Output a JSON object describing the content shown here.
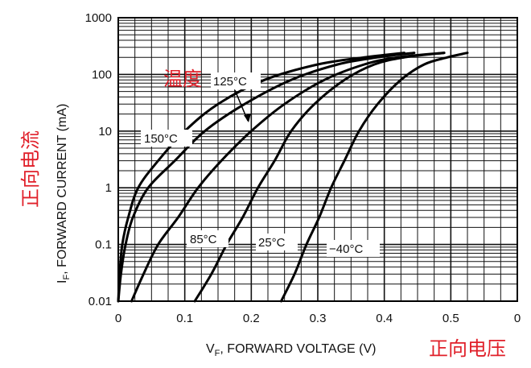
{
  "chart_data": {
    "type": "line",
    "xlabel_main": "V",
    "xlabel_sub": "F",
    "xlabel_rest": ", FORWARD VOLTAGE (V)",
    "ylabel_main": "I",
    "ylabel_sub": "F",
    "ylabel_rest": ", FORWARD CURRENT (mA)",
    "x_ticks": [
      "0",
      "0.1",
      "0.2",
      "0.3",
      "0.4",
      "0.5",
      "0"
    ],
    "y_ticks": [
      "0.01",
      "0.1",
      "1",
      "10",
      "100",
      "1000"
    ],
    "xlim": [
      0,
      0.6
    ],
    "ylim": [
      0.01,
      1000
    ],
    "y_scale": "log",
    "grid": true,
    "line_color": "#000000",
    "grid_color": "#111111",
    "series": [
      {
        "name": "150°C",
        "points": [
          [
            0.0,
            0.01
          ],
          [
            0.002,
            0.03
          ],
          [
            0.006,
            0.1
          ],
          [
            0.015,
            0.3
          ],
          [
            0.03,
            1
          ],
          [
            0.06,
            3
          ],
          [
            0.1,
            10
          ],
          [
            0.15,
            30
          ],
          [
            0.22,
            80
          ],
          [
            0.3,
            150
          ],
          [
            0.37,
            200
          ],
          [
            0.43,
            240
          ]
        ]
      },
      {
        "name": "125°C",
        "points": [
          [
            0.0,
            0.01
          ],
          [
            0.004,
            0.03
          ],
          [
            0.011,
            0.1
          ],
          [
            0.022,
            0.3
          ],
          [
            0.045,
            1
          ],
          [
            0.085,
            3
          ],
          [
            0.13,
            10
          ],
          [
            0.19,
            30
          ],
          [
            0.26,
            80
          ],
          [
            0.33,
            150
          ],
          [
            0.39,
            200
          ],
          [
            0.445,
            240
          ]
        ]
      },
      {
        "name": "85°C",
        "points": [
          [
            0.02,
            0.01
          ],
          [
            0.038,
            0.03
          ],
          [
            0.06,
            0.1
          ],
          [
            0.09,
            0.3
          ],
          [
            0.12,
            1
          ],
          [
            0.155,
            3
          ],
          [
            0.2,
            10
          ],
          [
            0.25,
            30
          ],
          [
            0.31,
            80
          ],
          [
            0.37,
            150
          ],
          [
            0.42,
            200
          ],
          [
            0.49,
            240
          ]
        ]
      },
      {
        "name": "25°C",
        "points": [
          [
            0.115,
            0.01
          ],
          [
            0.14,
            0.03
          ],
          [
            0.163,
            0.1
          ],
          [
            0.187,
            0.3
          ],
          [
            0.21,
            1
          ],
          [
            0.235,
            3
          ],
          [
            0.26,
            10
          ],
          [
            0.295,
            30
          ],
          [
            0.34,
            80
          ],
          [
            0.385,
            150
          ],
          [
            0.43,
            200
          ],
          [
            0.49,
            240
          ]
        ]
      },
      {
        "name": "−40°C",
        "points": [
          [
            0.245,
            0.01
          ],
          [
            0.265,
            0.03
          ],
          [
            0.283,
            0.1
          ],
          [
            0.302,
            0.3
          ],
          [
            0.32,
            1
          ],
          [
            0.34,
            3
          ],
          [
            0.362,
            10
          ],
          [
            0.39,
            30
          ],
          [
            0.425,
            80
          ],
          [
            0.46,
            150
          ],
          [
            0.495,
            200
          ],
          [
            0.525,
            240
          ]
        ]
      }
    ],
    "annotations": {
      "temp_cn": "温度",
      "ylabel_cn": "正向电流",
      "xlabel_cn": "正向电压",
      "cn_color": "#e0202a"
    }
  }
}
